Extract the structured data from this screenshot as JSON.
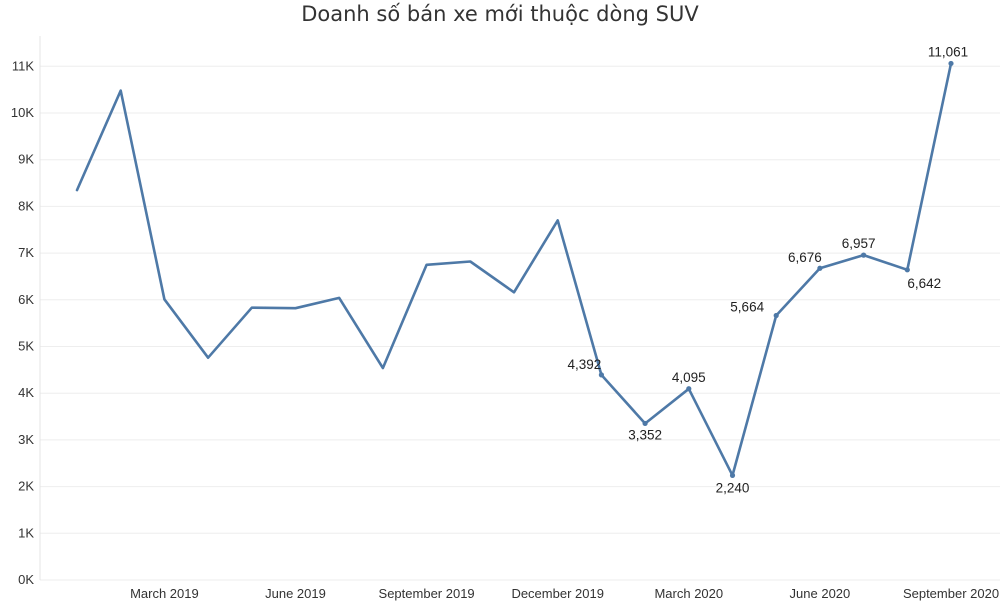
{
  "chart_data": {
    "type": "line",
    "title": "Doanh số bán xe mới thuộc dòng SUV",
    "xlabel": "",
    "ylabel": "",
    "x": [
      "2019-01",
      "2019-02",
      "2019-03",
      "2019-04",
      "2019-05",
      "2019-06",
      "2019-07",
      "2019-08",
      "2019-09",
      "2019-10",
      "2019-11",
      "2019-12",
      "2020-01",
      "2020-02",
      "2020-03",
      "2020-04",
      "2020-05",
      "2020-06",
      "2020-07",
      "2020-08",
      "2020-09"
    ],
    "values": [
      8350,
      10480,
      6010,
      4760,
      5830,
      5820,
      6040,
      4540,
      6750,
      6820,
      6160,
      7700,
      4392,
      3352,
      4095,
      2240,
      5664,
      6676,
      6957,
      6642,
      11061
    ],
    "data_labels": [
      {
        "index": 12,
        "text": "4,392"
      },
      {
        "index": 13,
        "text": "3,352"
      },
      {
        "index": 14,
        "text": "4,095"
      },
      {
        "index": 15,
        "text": "2,240"
      },
      {
        "index": 16,
        "text": "5,664"
      },
      {
        "index": 17,
        "text": "6,676"
      },
      {
        "index": 18,
        "text": "6,957"
      },
      {
        "index": 19,
        "text": "6,642"
      },
      {
        "index": 20,
        "text": "11,061"
      }
    ],
    "x_tick_labels": [
      {
        "index": 2,
        "text": "March 2019"
      },
      {
        "index": 5,
        "text": "June 2019"
      },
      {
        "index": 8,
        "text": "September 2019"
      },
      {
        "index": 11,
        "text": "December 2019"
      },
      {
        "index": 14,
        "text": "March 2020"
      },
      {
        "index": 17,
        "text": "June 2020"
      },
      {
        "index": 20,
        "text": "September 2020"
      }
    ],
    "y_ticks": [
      0,
      1000,
      2000,
      3000,
      4000,
      5000,
      6000,
      7000,
      8000,
      9000,
      10000,
      11000
    ],
    "y_tick_labels": [
      "0K",
      "1K",
      "2K",
      "3K",
      "4K",
      "5K",
      "6K",
      "7K",
      "8K",
      "9K",
      "10K",
      "11K"
    ],
    "ylim": [
      0,
      11700
    ],
    "grid": true,
    "colors": {
      "line": "#4e79a7",
      "grid": "#eeeeee",
      "text": "#333333"
    }
  }
}
